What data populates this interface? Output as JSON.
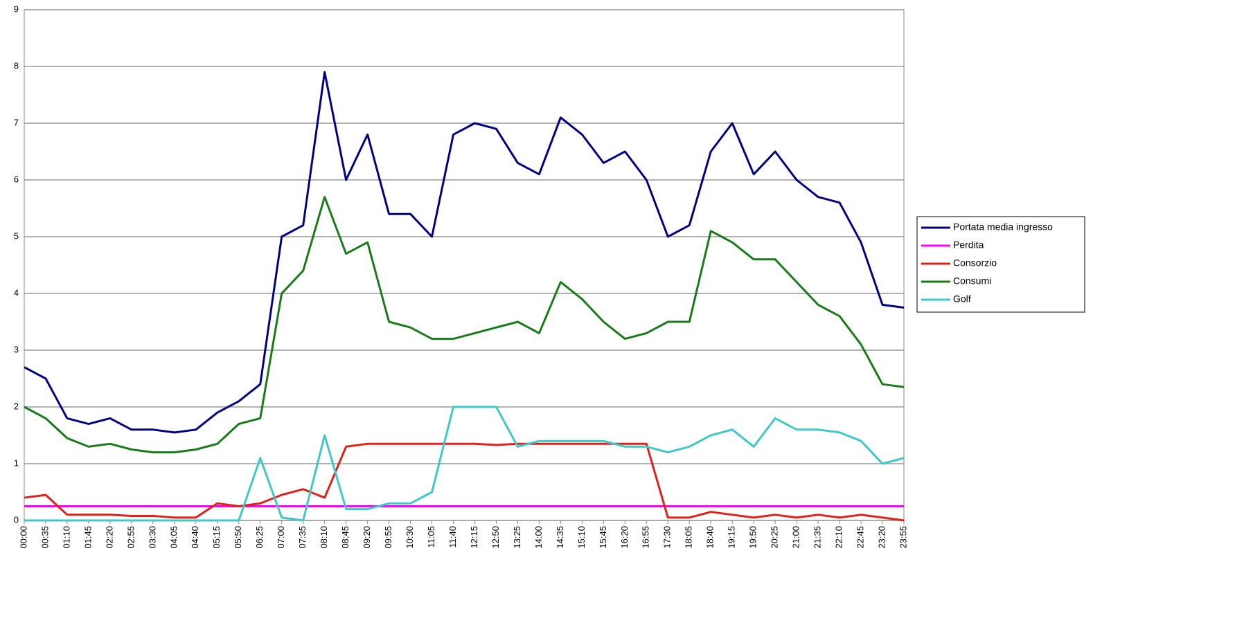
{
  "chart_data": {
    "type": "line",
    "categories": [
      "00:00",
      "00:35",
      "01:10",
      "01:45",
      "02:20",
      "02:55",
      "03:30",
      "04:05",
      "04:40",
      "05:15",
      "05:50",
      "06:25",
      "07:00",
      "07:35",
      "08:10",
      "08:45",
      "09:20",
      "09:55",
      "10:30",
      "11:05",
      "11:40",
      "12:15",
      "12:50",
      "13:25",
      "14:00",
      "14:35",
      "15:10",
      "15:45",
      "16:20",
      "16:55",
      "17:30",
      "18:05",
      "18:40",
      "19:15",
      "19:50",
      "20:25",
      "21:00",
      "21:35",
      "22:10",
      "22:45",
      "23:20",
      "23:55"
    ],
    "series": [
      {
        "name": "Portata media ingresso",
        "color": "#000080",
        "values": [
          2.7,
          2.5,
          1.8,
          1.7,
          1.8,
          1.6,
          1.6,
          1.55,
          1.6,
          1.9,
          2.1,
          2.4,
          5.0,
          5.2,
          7.9,
          6.0,
          6.8,
          5.4,
          5.4,
          5.0,
          6.8,
          7.0,
          6.9,
          6.3,
          6.1,
          7.1,
          6.8,
          6.3,
          6.5,
          6.0,
          5.0,
          5.2,
          6.5,
          7.0,
          6.1,
          6.5,
          6.0,
          5.7,
          5.6,
          4.9,
          3.8,
          3.75
        ]
      },
      {
        "name": "Perdita",
        "color": "#ff00ff",
        "values": [
          0.25,
          0.25,
          0.25,
          0.25,
          0.25,
          0.25,
          0.25,
          0.25,
          0.25,
          0.25,
          0.25,
          0.25,
          0.25,
          0.25,
          0.25,
          0.25,
          0.25,
          0.25,
          0.25,
          0.25,
          0.25,
          0.25,
          0.25,
          0.25,
          0.25,
          0.25,
          0.25,
          0.25,
          0.25,
          0.25,
          0.25,
          0.25,
          0.25,
          0.25,
          0.25,
          0.25,
          0.25,
          0.25,
          0.25,
          0.25,
          0.25,
          0.25
        ]
      },
      {
        "name": "Consorzio",
        "color": "#e0201a",
        "values": [
          0.4,
          0.45,
          0.1,
          0.1,
          0.1,
          0.08,
          0.08,
          0.05,
          0.05,
          0.3,
          0.25,
          0.3,
          0.45,
          0.55,
          0.4,
          1.3,
          1.35,
          1.35,
          1.35,
          1.35,
          1.35,
          1.35,
          1.33,
          1.35,
          1.35,
          1.35,
          1.35,
          1.35,
          1.35,
          1.35,
          0.05,
          0.05,
          0.15,
          0.1,
          0.05,
          0.1,
          0.05,
          0.1,
          0.05,
          0.1,
          0.05,
          0
        ]
      },
      {
        "name": "Consumi",
        "color": "#1a7a1a",
        "values": [
          2.0,
          1.8,
          1.45,
          1.3,
          1.35,
          1.25,
          1.2,
          1.2,
          1.25,
          1.35,
          1.7,
          1.8,
          4.0,
          4.4,
          5.7,
          4.7,
          4.9,
          3.5,
          3.4,
          3.2,
          3.2,
          3.3,
          3.4,
          3.5,
          3.3,
          4.2,
          3.9,
          3.5,
          3.2,
          3.3,
          3.5,
          3.5,
          5.1,
          4.9,
          4.6,
          4.6,
          4.2,
          3.8,
          3.6,
          3.1,
          2.4,
          2.35
        ]
      },
      {
        "name": "Golf",
        "color": "#40c8c8",
        "values": [
          0,
          0,
          0,
          0,
          0,
          0,
          0,
          0,
          0,
          0,
          0,
          1.1,
          0.05,
          0,
          1.5,
          0.2,
          0.2,
          0.3,
          0.3,
          0.5,
          2.0,
          2.0,
          2.0,
          1.3,
          1.4,
          1.4,
          1.4,
          1.4,
          1.3,
          1.3,
          1.2,
          1.3,
          1.5,
          1.6,
          1.3,
          1.8,
          1.6,
          1.6,
          1.55,
          1.4,
          1.0,
          1.1
        ]
      }
    ],
    "ylim": [
      0,
      9
    ],
    "yticks": [
      0,
      1,
      2,
      3,
      4,
      5,
      6,
      7,
      8,
      9
    ],
    "grid": true,
    "legend": "right"
  }
}
